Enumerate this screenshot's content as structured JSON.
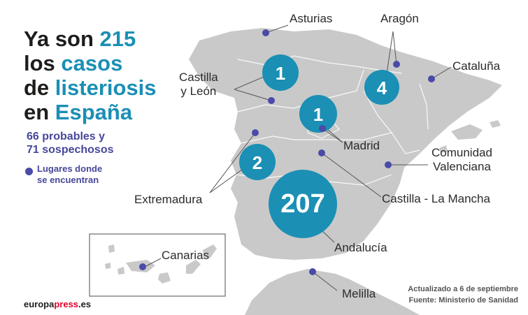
{
  "headline": {
    "line1_a": "Ya son ",
    "line1_b": "215",
    "line2_a": "los ",
    "line2_b": "casos",
    "line3_a": "de ",
    "line3_b": "listeriosis",
    "line4_a": "en ",
    "line4_b": "España"
  },
  "subhead": {
    "line1": "66 probables y",
    "line2": "71 sospechosos"
  },
  "legend": {
    "line1": "Lugares donde",
    "line2": "se encuentran"
  },
  "regions": {
    "asturias": "Asturias",
    "aragon": "Aragón",
    "cataluna": "Cataluña",
    "castilla_leon_1": "Castilla",
    "castilla_leon_2": "y León",
    "madrid": "Madrid",
    "comunidad_valenciana_1": "Comunidad",
    "comunidad_valenciana_2": "Valenciana",
    "extremadura": "Extremadura",
    "castilla_la_mancha": "Castilla - La Mancha",
    "andalucia": "Andalucía",
    "melilla": "Melilla",
    "canarias": "Canarias"
  },
  "cases": {
    "castilla_leon": "1",
    "aragon": "4",
    "madrid": "1",
    "extremadura": "2",
    "andalucia": "207"
  },
  "footer": {
    "updated": "Actualizado a 6 de septiembre",
    "source": "Fuente: Ministerio de Sanidad",
    "brand_a": "europa",
    "brand_b": "press",
    "brand_c": ".es"
  },
  "colors": {
    "land": "#c9c9c9",
    "bubble": "#1b8fb4",
    "dot": "#4a4aa8",
    "accent_text": "#1b8fb4",
    "sub_text": "#46479a"
  }
}
